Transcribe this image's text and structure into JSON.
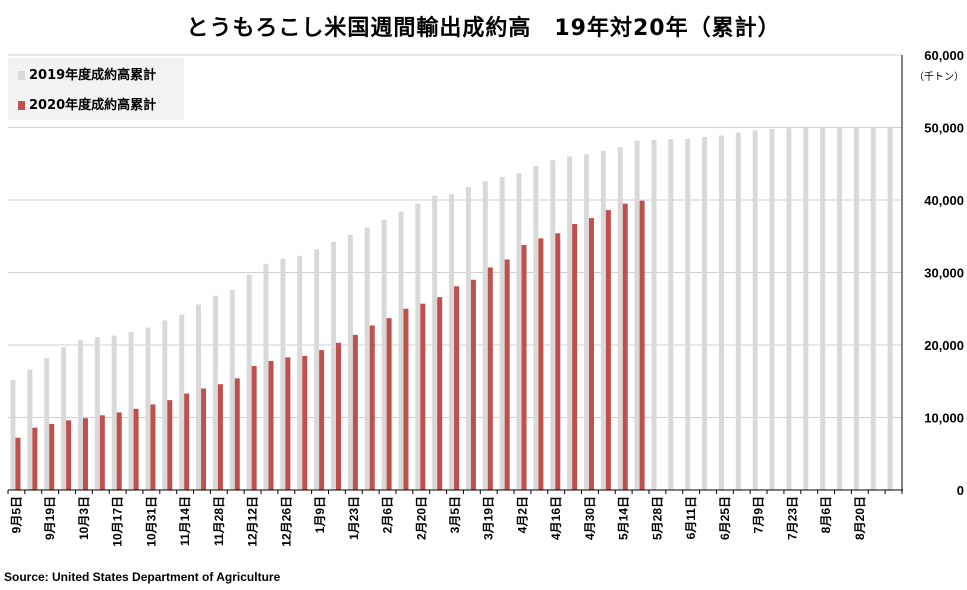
{
  "chart_data": {
    "type": "bar",
    "title": "とうもろこし米国週間輸出成約高　19年対20年（累計）",
    "unit_label": "（千トン）",
    "source": "Source: United States Department of Agriculture",
    "ylim": [
      0,
      60000
    ],
    "yticks": [
      "0",
      "10,000",
      "20,000",
      "30,000",
      "40,000",
      "50,000",
      "60,000"
    ],
    "grid": true,
    "legend_position": "top-left",
    "x_tick_labels": [
      "9月5日",
      "9月19日",
      "10月3日",
      "10月17日",
      "10月31日",
      "11月14日",
      "11月28日",
      "12月12日",
      "12月26日",
      "1月9日",
      "1月23日",
      "2月6日",
      "2月20日",
      "3月5日",
      "3月19日",
      "4月2日",
      "4月16日",
      "4月30日",
      "5月14日",
      "5月28日",
      "6月11日",
      "6月25日",
      "7月9日",
      "7月23日",
      "8月6日",
      "8月20日"
    ],
    "series": [
      {
        "name": "2019年度成約高累計",
        "color": "#d9d9d9",
        "values": [
          15200,
          16600,
          18200,
          19700,
          20700,
          21100,
          21300,
          21800,
          22400,
          23400,
          24200,
          25600,
          26800,
          27600,
          29700,
          31200,
          31900,
          32300,
          33200,
          34200,
          35200,
          36200,
          37300,
          38400,
          39500,
          40600,
          40800,
          41800,
          42600,
          43200,
          43700,
          44700,
          45500,
          46000,
          46300,
          46800,
          47300,
          48200,
          48300,
          48400,
          48400,
          48700,
          48900,
          49300,
          49600,
          49800,
          49900,
          50000,
          50000,
          50000,
          50000,
          50000,
          50000
        ]
      },
      {
        "name": "2020年度成約高累計",
        "color": "#c0504d",
        "values": [
          7200,
          8600,
          9100,
          9600,
          9900,
          10300,
          10700,
          11200,
          11800,
          12400,
          13300,
          14000,
          14600,
          15400,
          17100,
          17800,
          18300,
          18500,
          19300,
          20300,
          21400,
          22700,
          23700,
          25000,
          25700,
          26600,
          28100,
          29000,
          30700,
          31800,
          33800,
          34700,
          35400,
          36700,
          37500,
          38600,
          39500,
          39900
        ]
      }
    ]
  }
}
